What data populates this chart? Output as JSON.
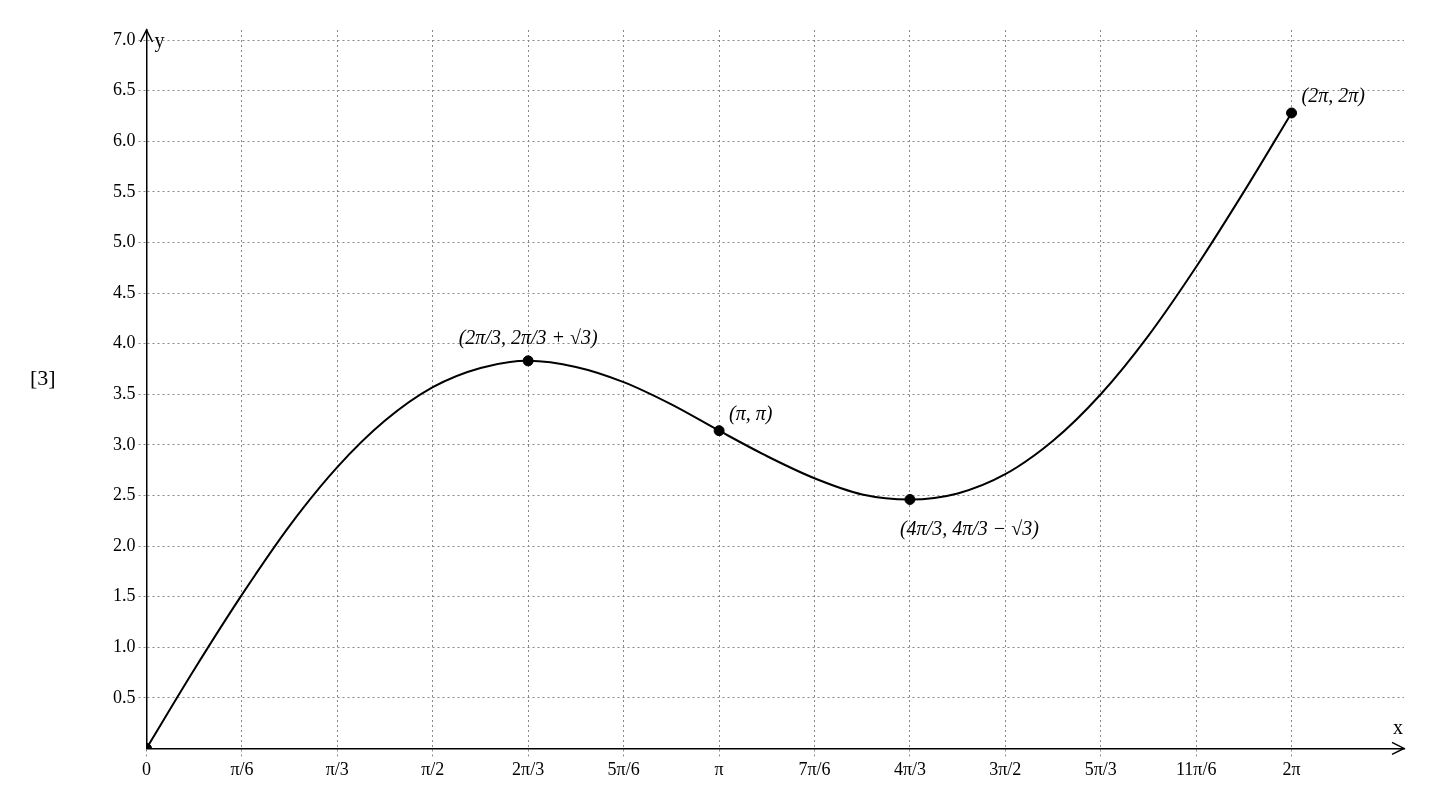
{
  "chart_data": {
    "type": "line",
    "xlabel": "x",
    "ylabel": "y",
    "xlim": [
      0,
      6.9
    ],
    "ylim": [
      0,
      7.1
    ],
    "xticks": [
      {
        "value": 0,
        "label": "0"
      },
      {
        "value": 0.524,
        "label": "π/6"
      },
      {
        "value": 1.047,
        "label": "π/3"
      },
      {
        "value": 1.571,
        "label": "π/2"
      },
      {
        "value": 2.094,
        "label": "2π/3"
      },
      {
        "value": 2.618,
        "label": "5π/6"
      },
      {
        "value": 3.142,
        "label": "π"
      },
      {
        "value": 3.665,
        "label": "7π/6"
      },
      {
        "value": 4.189,
        "label": "4π/3"
      },
      {
        "value": 4.712,
        "label": "3π/2"
      },
      {
        "value": 5.236,
        "label": "5π/3"
      },
      {
        "value": 5.76,
        "label": "11π/6"
      },
      {
        "value": 6.283,
        "label": "2π"
      }
    ],
    "yticks": [
      {
        "value": 0.5,
        "label": "0.5"
      },
      {
        "value": 1,
        "label": "1.0"
      },
      {
        "value": 1.5,
        "label": "1.5"
      },
      {
        "value": 2,
        "label": "2.0"
      },
      {
        "value": 2.5,
        "label": "2.5"
      },
      {
        "value": 3,
        "label": "3.0"
      },
      {
        "value": 3.5,
        "label": "3.5"
      },
      {
        "value": 4,
        "label": "4.0"
      },
      {
        "value": 4.5,
        "label": "4.5"
      },
      {
        "value": 5,
        "label": "5.0"
      },
      {
        "value": 5.5,
        "label": "5.5"
      },
      {
        "value": 6,
        "label": "6.0"
      },
      {
        "value": 6.5,
        "label": "6.5"
      },
      {
        "value": 7,
        "label": "7.0"
      }
    ],
    "grid": true,
    "legend": false,
    "series": [
      {
        "color": "#000000",
        "marker": "none",
        "x": [
          0,
          0.262,
          0.524,
          0.785,
          1.047,
          1.309,
          1.571,
          1.833,
          2.094,
          2.356,
          2.618,
          2.88,
          3.142,
          3.403,
          3.665,
          3.927,
          4.189,
          4.451,
          4.712,
          4.974,
          5.236,
          5.498,
          5.76,
          6.021,
          6.283
        ],
        "values": [
          0,
          0.78,
          1.52,
          2.2,
          2.78,
          3.24,
          3.57,
          3.76,
          3.83,
          3.77,
          3.62,
          3.4,
          3.14,
          2.89,
          2.67,
          2.51,
          2.46,
          2.52,
          2.71,
          3.04,
          3.5,
          4.08,
          4.76,
          5.5,
          6.28
        ]
      },
      {
        "type": "scatter",
        "color": "#000000",
        "marker": "circle",
        "x": [
          0,
          2.094,
          3.142,
          4.189,
          6.283
        ],
        "values": [
          0,
          3.83,
          3.14,
          2.46,
          6.28
        ]
      }
    ],
    "annotations": [
      "[3]",
      {
        "text": "(2π/3, 2π/3 + √3)",
        "x": 2.094,
        "y": 3.83
      },
      {
        "text": "(π, π)",
        "x": 3.142,
        "y": 3.14
      },
      {
        "text": "(4π/3, 4π/3 − √3)",
        "x": 4.189,
        "y": 2.46
      },
      {
        "text": "(2π, 2π)",
        "x": 6.283,
        "y": 6.28
      }
    ]
  }
}
